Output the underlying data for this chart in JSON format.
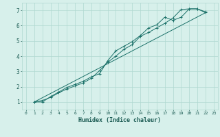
{
  "xlabel": "Humidex (Indice chaleur)",
  "background_color": "#d7f0eb",
  "grid_color": "#b0d8d0",
  "line_color": "#1a7068",
  "xlim": [
    -0.5,
    23.5
  ],
  "ylim": [
    0.5,
    7.5
  ],
  "xticks": [
    0,
    1,
    2,
    3,
    4,
    5,
    6,
    7,
    8,
    9,
    10,
    11,
    12,
    13,
    14,
    15,
    16,
    17,
    18,
    19,
    20,
    21,
    22,
    23
  ],
  "yticks": [
    1,
    2,
    3,
    4,
    5,
    6,
    7
  ],
  "line1_x": [
    1,
    2,
    3,
    4,
    5,
    6,
    7,
    8,
    9,
    10,
    11,
    12,
    13,
    14,
    15,
    16,
    17,
    18,
    19,
    20,
    21,
    22
  ],
  "line1_y": [
    1.0,
    1.1,
    1.3,
    1.6,
    1.85,
    2.05,
    2.25,
    2.55,
    3.05,
    3.6,
    4.0,
    4.45,
    4.75,
    5.3,
    5.55,
    5.85,
    6.15,
    6.5,
    7.05,
    7.1,
    7.1,
    6.9
  ],
  "line2_x": [
    1,
    2,
    3,
    4,
    5,
    6,
    7,
    8,
    9,
    10,
    11,
    12,
    13,
    14,
    15,
    16,
    17,
    18,
    19,
    20,
    21,
    22
  ],
  "line2_y": [
    1.0,
    1.0,
    1.35,
    1.65,
    1.95,
    2.15,
    2.35,
    2.65,
    2.85,
    3.7,
    4.35,
    4.65,
    4.95,
    5.35,
    5.85,
    6.05,
    6.55,
    6.35,
    6.55,
    7.1,
    7.1,
    6.85
  ],
  "line3_x": [
    1,
    22
  ],
  "line3_y": [
    1.0,
    6.85
  ]
}
